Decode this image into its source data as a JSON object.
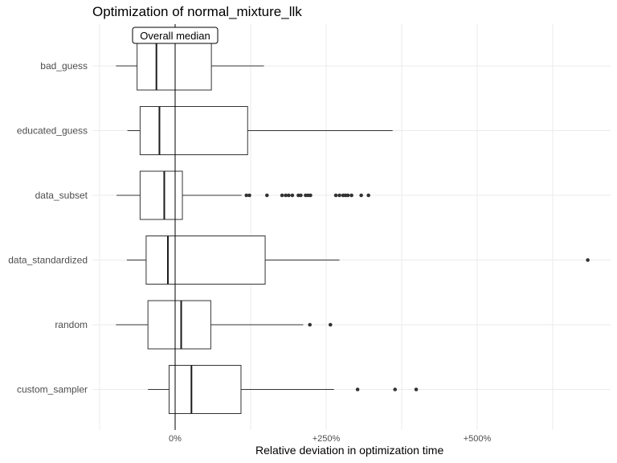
{
  "chart_data": {
    "type": "boxplot",
    "orientation": "horizontal",
    "title": "Optimization of normal_mixture_llk",
    "xlabel": "Relative deviation in optimization time",
    "ylabel": "",
    "xlim": [
      -1.3,
      7.55
    ],
    "x_ticks": [
      {
        "value": 0,
        "label": "0%"
      },
      {
        "value": 2.5,
        "label": "+250%"
      },
      {
        "value": 5,
        "label": "+500%"
      }
    ],
    "grid": true,
    "reference_line": {
      "value": 0,
      "label": "Overall median"
    },
    "categories": [
      "bad_guess",
      "educated_guess",
      "data_subset",
      "data_standardized",
      "random",
      "custom_sampler"
    ],
    "boxes": [
      {
        "category": "bad_guess",
        "whisker_low": -0.98,
        "q1": -0.63,
        "median": -0.31,
        "q3": 0.6,
        "whisker_high": 1.47,
        "outliers": []
      },
      {
        "category": "educated_guess",
        "whisker_low": -0.79,
        "q1": -0.58,
        "median": -0.26,
        "q3": 1.2,
        "whisker_high": 3.6,
        "outliers": []
      },
      {
        "category": "data_subset",
        "whisker_low": -0.97,
        "q1": -0.58,
        "median": -0.18,
        "q3": 0.12,
        "whisker_high": 1.1,
        "outliers": [
          1.18,
          1.23,
          1.52,
          1.77,
          1.83,
          1.88,
          1.94,
          2.04,
          2.08,
          2.16,
          2.2,
          2.24,
          2.66,
          2.72,
          2.78,
          2.82,
          2.86,
          2.92,
          3.08,
          3.2
        ]
      },
      {
        "category": "data_standardized",
        "whisker_low": -0.8,
        "q1": -0.48,
        "median": -0.12,
        "q3": 1.49,
        "whisker_high": 2.72,
        "outliers": [
          6.83
        ]
      },
      {
        "category": "random",
        "whisker_low": -0.98,
        "q1": -0.45,
        "median": 0.1,
        "q3": 0.59,
        "whisker_high": 2.12,
        "outliers": [
          2.23,
          2.57
        ]
      },
      {
        "category": "custom_sampler",
        "whisker_low": -0.45,
        "q1": -0.1,
        "median": 0.27,
        "q3": 1.09,
        "whisker_high": 2.63,
        "outliers": [
          3.02,
          3.64,
          3.99
        ]
      }
    ]
  }
}
